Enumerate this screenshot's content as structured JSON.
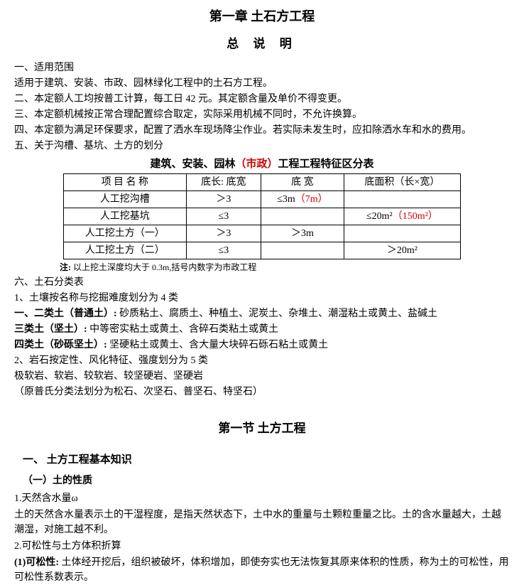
{
  "chapter_title": "第一章  土石方工程",
  "general_title": "总 说 明",
  "p1": "一、适用范围",
  "p2": "适用于建筑、安装、市政、园林绿化工程中的土石方工程。",
  "p3": "二、本定额人工均按普工计算，每工日 42 元。其定额含量及单价不得变更。",
  "p4": "三、本定额机械按正常合理配置综合取定，实际采用机械不同时，不允许换算。",
  "p5": "四、本定额为满足环保要求，配置了洒水车现场降尘作业。若实际未发生时，应扣除洒水车和水的费用。",
  "p6": "五、关于沟槽、基坑、土方的划分",
  "table_caption_pre": "建筑、安装、园林",
  "table_caption_red": "（市政）",
  "table_caption_post": "工程工程特征区分表",
  "table": {
    "headers": [
      "项 目 名 称",
      "底长: 底宽",
      "底 宽",
      "底面积（长×宽）"
    ],
    "rows": [
      {
        "c1": "人工挖沟槽",
        "c2": "＞3",
        "c3a": "≤3m",
        "c3b": "（7m）",
        "c4a": "",
        "c4b": ""
      },
      {
        "c1": "人工挖基坑",
        "c2": "≤3",
        "c3a": "",
        "c3b": "",
        "c4a": "≤20m²",
        "c4b": "（150m²）"
      },
      {
        "c1": "人工挖土方（一）",
        "c2": "＞3",
        "c3a": "＞3m",
        "c3b": "",
        "c4a": "",
        "c4b": ""
      },
      {
        "c1": "人工挖土方（二）",
        "c2": "≤3",
        "c3a": "",
        "c3b": "",
        "c4a": "＞20m²",
        "c4b": ""
      }
    ]
  },
  "note_label": "注: ",
  "note_text": "以上挖土深度均大于 0.3m,括号内数字为市政工程",
  "p7": "六、土石分类表",
  "p8": "1、土壤按名称与挖掘难度划分为 4 类",
  "cat1_label": "一、二类土（普通土）: ",
  "cat1_text": "砂质粘土、腐质土、种植土、泥炭土、杂堆土、潮湿粘土或黄土、盐碱土",
  "cat2_label": "三类土（坚土）: ",
  "cat2_text": "中等密实粘土或黄土、含碎石类粘土或黄土",
  "cat3_label": "四类土（砂砾坚土）: ",
  "cat3_text": "坚硬粘土或黄土、含大量大块碎石砾石粘土或黄土",
  "p9": "2、岩石按定性、风化特征、强度划分为 5 类",
  "p10": "极软岩、软岩、较软岩、较坚硬岩、坚硬岩",
  "p11": "（原普氏分类法划分为松石、次坚石、普坚石、特坚石）",
  "section_title": "第一节  土方工程",
  "sub1": "一、 土方工程基本知识",
  "sub2": "（一）土的性质",
  "prop1_title": "1.天然含水量ω",
  "prop1_text": "土的天然含水量表示土的干湿程度，是指天然状态下，土中水的重量与土颗粒重量之比。土的含水量越大，土越潮湿，对施工越不利。",
  "prop2_title": "2.可松性与土方体积折算",
  "prop2_label": "(1)可松性: ",
  "prop2_text": "土体经开挖后，组织被破坏，体积增加，即使夯实也无法恢复其原来体积的性质，称为土的可松性，用可松性系数表示。"
}
